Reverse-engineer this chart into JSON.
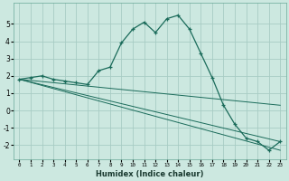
{
  "xlabel": "Humidex (Indice chaleur)",
  "ylabel": "",
  "background_color": "#cce8e0",
  "grid_color": "#a8ccc4",
  "line_color": "#1a6b5a",
  "xlim": [
    -0.5,
    23.5
  ],
  "ylim": [
    -2.8,
    6.2
  ],
  "yticks": [
    -2,
    -1,
    0,
    1,
    2,
    3,
    4,
    5
  ],
  "xticks": [
    0,
    1,
    2,
    3,
    4,
    5,
    6,
    7,
    8,
    9,
    10,
    11,
    12,
    13,
    14,
    15,
    16,
    17,
    18,
    19,
    20,
    21,
    22,
    23
  ],
  "main_line_x": [
    0,
    1,
    2,
    3,
    4,
    5,
    6,
    7,
    8,
    9,
    10,
    11,
    12,
    13,
    14,
    15,
    16,
    17,
    18,
    19,
    20,
    21,
    22,
    23
  ],
  "main_line_y": [
    1.8,
    1.9,
    2.0,
    1.8,
    1.7,
    1.6,
    1.5,
    2.3,
    2.5,
    3.9,
    4.7,
    5.1,
    4.5,
    5.3,
    5.5,
    4.7,
    3.3,
    1.9,
    0.3,
    -0.8,
    -1.6,
    -1.8,
    -2.3,
    -1.8
  ],
  "trend_line1_x": [
    0,
    23
  ],
  "trend_line1_y": [
    1.8,
    0.3
  ],
  "trend_line2_x": [
    0,
    23
  ],
  "trend_line2_y": [
    1.8,
    -1.8
  ],
  "trend_line3_x": [
    0,
    23
  ],
  "trend_line3_y": [
    1.8,
    -2.3
  ]
}
